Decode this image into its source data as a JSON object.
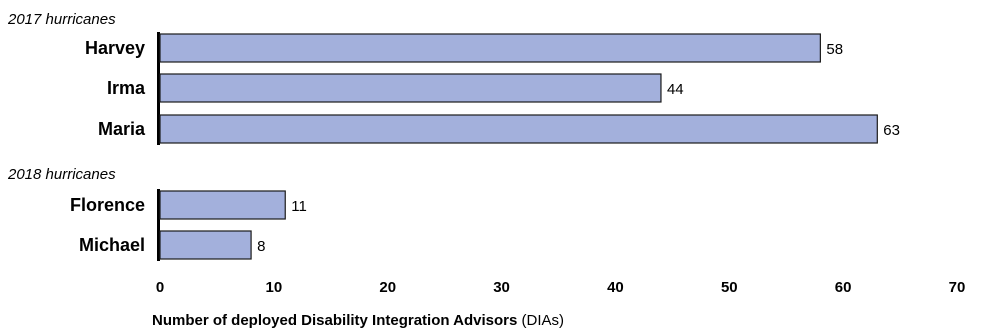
{
  "chart_data": {
    "type": "bar",
    "orientation": "horizontal",
    "groups": [
      {
        "label": "2017 hurricanes",
        "categories": [
          "Harvey",
          "Irma",
          "Maria"
        ],
        "values": [
          58,
          44,
          63
        ]
      },
      {
        "label": "2018 hurricanes",
        "categories": [
          "Florence",
          "Michael"
        ],
        "values": [
          11,
          8
        ]
      }
    ],
    "xlabel_bold": "Number of deployed Disability Integration Advisors",
    "xlabel_normal": "(DIAs)",
    "xlim": [
      0,
      70
    ],
    "xticks": [
      0,
      10,
      20,
      30,
      40,
      50,
      60,
      70
    ],
    "grid": false,
    "legend": "none",
    "colors": {
      "bar_fill": "#a3b0dc",
      "bar_stroke": "#1a1a1a",
      "axis": "#000000",
      "text": "#000000"
    }
  }
}
